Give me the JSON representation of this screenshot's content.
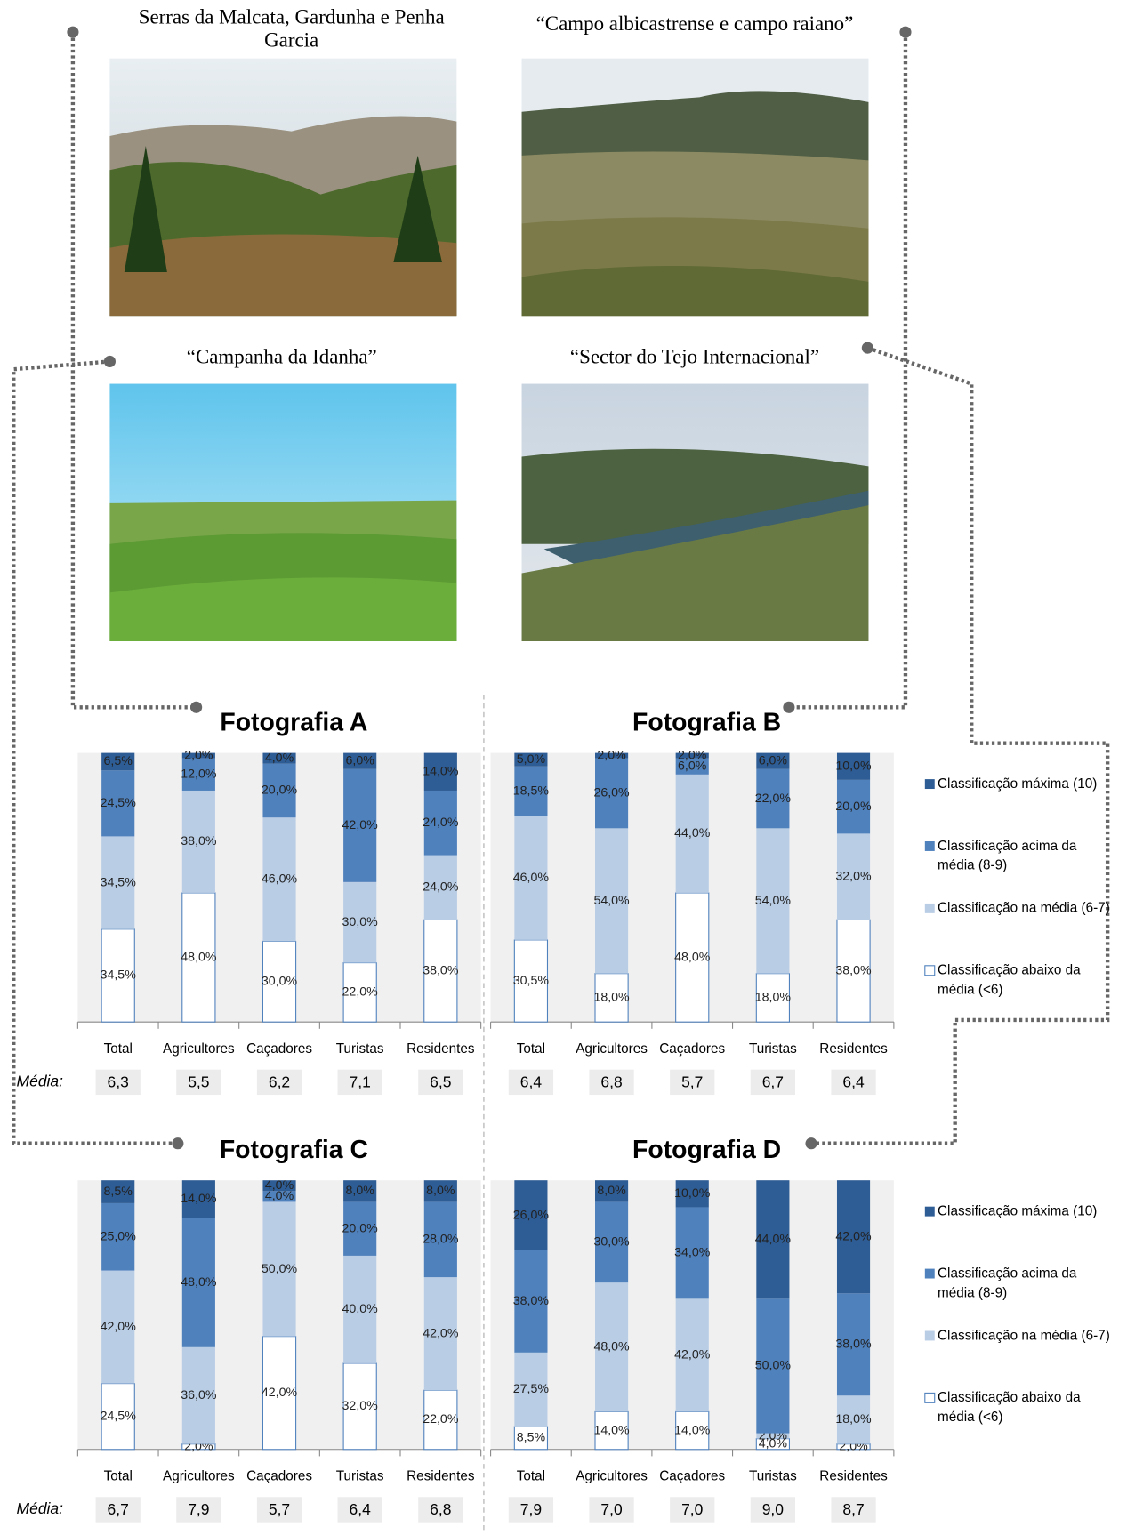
{
  "photos": [
    {
      "caption": "Serras da Malcata, Gardunha e Penha Garcia"
    },
    {
      "caption": "“Campo albicastrense e campo raiano”"
    },
    {
      "caption": "“Campanha da Idanha”"
    },
    {
      "caption": "“Sector do Tejo Internacional”"
    }
  ],
  "chart_data": [
    {
      "type": "bar",
      "stacked": true,
      "title": "Fotografia A",
      "ylim": [
        0,
        100
      ],
      "categories": [
        "Total",
        "Agricultores",
        "Caçadores",
        "Turistas",
        "Residentes"
      ],
      "series": [
        {
          "color": "#ffffff",
          "values": [
            34.5,
            48,
            30,
            22,
            38
          ],
          "value_labels": [
            "34,5%",
            "48,0%",
            "30,0%",
            "22,0%",
            "38,0%"
          ]
        },
        {
          "color": "#b9cde5",
          "values": [
            34.5,
            38,
            46,
            30,
            24
          ],
          "value_labels": [
            "34,5%",
            "38,0%",
            "46,0%",
            "30,0%",
            "24,0%"
          ]
        },
        {
          "color": "#4f81bd",
          "values": [
            24.5,
            12,
            20,
            42,
            24
          ],
          "value_labels": [
            "24,5%",
            "12,0%",
            "20,0%",
            "42,0%",
            "24,0%"
          ]
        },
        {
          "color": "#2e5c94",
          "values": [
            6.5,
            2,
            4,
            6,
            14
          ],
          "value_labels": [
            "6,5%",
            "2,0%",
            "4,0%",
            "6,0%",
            "14,0%"
          ]
        }
      ],
      "mean_label": "Média:",
      "means": [
        6.3,
        5.5,
        6.2,
        7.1,
        6.5
      ],
      "mean_labels": [
        "6,3",
        "5,5",
        "6,2",
        "7,1",
        "6,5"
      ]
    },
    {
      "type": "bar",
      "stacked": true,
      "title": "Fotografia B",
      "ylim": [
        0,
        100
      ],
      "categories": [
        "Total",
        "Agricultores",
        "Caçadores",
        "Turistas",
        "Residentes"
      ],
      "series": [
        {
          "name": "Classificação abaixo da média (<6)",
          "color": "#ffffff",
          "values": [
            30.5,
            18,
            48,
            18,
            38
          ],
          "value_labels": [
            "30,5%",
            "18,0%",
            "48,0%",
            "18,0%",
            "38,0%"
          ]
        },
        {
          "name": "Classificação na média (6-7)",
          "color": "#b9cde5",
          "values": [
            46,
            54,
            44,
            54,
            32
          ],
          "value_labels": [
            "46,0%",
            "54,0%",
            "44,0%",
            "54,0%",
            "32,0%"
          ]
        },
        {
          "name": "Classificação acima da média (8-9)",
          "color": "#4f81bd",
          "values": [
            18.5,
            26,
            6,
            22,
            20
          ],
          "value_labels": [
            "18,5%",
            "26,0%",
            "6,0%",
            "22,0%",
            "20,0%"
          ]
        },
        {
          "name": "Classificação máxima (10)",
          "color": "#2e5c94",
          "values": [
            5,
            2,
            2,
            6,
            10
          ],
          "value_labels": [
            "5,0%",
            "2,0%",
            "2,0%",
            "6,0%",
            "10,0%"
          ]
        }
      ],
      "means": [
        6.4,
        6.8,
        5.7,
        6.7,
        6.4
      ],
      "mean_labels": [
        "6,4",
        "6,8",
        "5,7",
        "6,7",
        "6,4"
      ]
    },
    {
      "type": "bar",
      "stacked": true,
      "title": "Fotografia C",
      "ylim": [
        0,
        100
      ],
      "categories": [
        "Total",
        "Agricultores",
        "Caçadores",
        "Turistas",
        "Residentes"
      ],
      "series": [
        {
          "color": "#ffffff",
          "values": [
            24.5,
            2,
            42,
            32,
            22
          ],
          "value_labels": [
            "24,5%",
            "2,0%",
            "42,0%",
            "32,0%",
            "22,0%"
          ]
        },
        {
          "color": "#b9cde5",
          "values": [
            42,
            36,
            50,
            40,
            42
          ],
          "value_labels": [
            "42,0%",
            "36,0%",
            "50,0%",
            "40,0%",
            "42,0%"
          ]
        },
        {
          "color": "#4f81bd",
          "values": [
            25,
            48,
            4,
            20,
            28
          ],
          "value_labels": [
            "25,0%",
            "48,0%",
            "4,0%",
            "20,0%",
            "28,0%"
          ]
        },
        {
          "color": "#2e5c94",
          "values": [
            8.5,
            14,
            4,
            8,
            8
          ],
          "value_labels": [
            "8,5%",
            "14,0%",
            "4,0%",
            "8,0%",
            "8,0%"
          ]
        }
      ],
      "mean_label": "Média:",
      "means": [
        6.7,
        7.9,
        5.7,
        6.4,
        6.8
      ],
      "mean_labels": [
        "6,7",
        "7,9",
        "5,7",
        "6,4",
        "6,8"
      ]
    },
    {
      "type": "bar",
      "stacked": true,
      "title": "Fotografia D",
      "ylim": [
        0,
        100
      ],
      "categories": [
        "Total",
        "Agricultores",
        "Caçadores",
        "Turistas",
        "Residentes"
      ],
      "series": [
        {
          "name": "Classificação abaixo da média (<6)",
          "color": "#ffffff",
          "values": [
            8.5,
            14,
            14,
            4,
            2
          ],
          "value_labels": [
            "8,5%",
            "14,0%",
            "14,0%",
            "4,0%",
            "2,0%"
          ]
        },
        {
          "name": "Classificação na média (6-7)",
          "color": "#b9cde5",
          "values": [
            27.5,
            48,
            42,
            2,
            18
          ],
          "value_labels": [
            "27,5%",
            "48,0%",
            "42,0%",
            "2,0%",
            "18,0%"
          ]
        },
        {
          "name": "Classificação acima da média (8-9)",
          "color": "#4f81bd",
          "values": [
            38,
            30,
            34,
            50,
            38
          ],
          "value_labels": [
            "38,0%",
            "30,0%",
            "34,0%",
            "50,0%",
            "38,0%"
          ]
        },
        {
          "name": "Classificação máxima (10)",
          "color": "#2e5c94",
          "values": [
            26,
            8,
            10,
            44,
            42
          ],
          "value_labels": [
            "26,0%",
            "8,0%",
            "10,0%",
            "44,0%",
            "42,0%"
          ]
        }
      ],
      "means": [
        7.9,
        7.0,
        7.0,
        9.0,
        8.7
      ],
      "mean_labels": [
        "7,9",
        "7,0",
        "7,0",
        "9,0",
        "8,7"
      ]
    }
  ]
}
